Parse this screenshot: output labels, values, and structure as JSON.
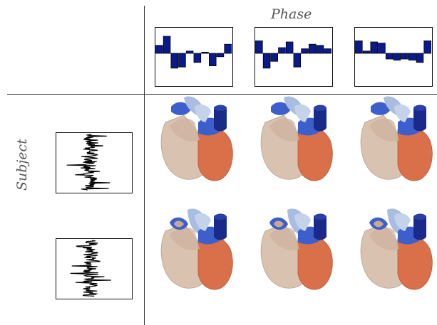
{
  "labels": {
    "phase": "Phase",
    "subject": "Subject"
  },
  "colors": {
    "bar_fill": "#0a1a8c",
    "heart_beige": "#d9c2b0",
    "heart_orange": "#d9704a",
    "heart_blue": "#3d5fcc",
    "heart_navy": "#1a2a8a",
    "heart_lightblue": "#a8bde0"
  },
  "phase_codes": [
    [
      0.35,
      0.75,
      -0.65,
      -0.6,
      0.1,
      -0.4,
      0.05,
      -0.55,
      -0.15,
      0.4
    ],
    [
      0.55,
      -0.65,
      -0.35,
      0.25,
      0.5,
      -0.6,
      0.2,
      0.4,
      0.35,
      0.2
    ],
    [
      0.55,
      0.1,
      0.5,
      0.45,
      -0.25,
      -0.3,
      -0.25,
      -0.3,
      -0.4,
      0.55
    ]
  ],
  "subject_codes_seeds": [
    7,
    19
  ],
  "hearts": [
    {
      "row": 0,
      "col": 0,
      "variant": "front"
    },
    {
      "row": 0,
      "col": 1,
      "variant": "front"
    },
    {
      "row": 0,
      "col": 2,
      "variant": "front"
    },
    {
      "row": 1,
      "col": 0,
      "variant": "open"
    },
    {
      "row": 1,
      "col": 1,
      "variant": "open"
    },
    {
      "row": 1,
      "col": 2,
      "variant": "open"
    }
  ]
}
